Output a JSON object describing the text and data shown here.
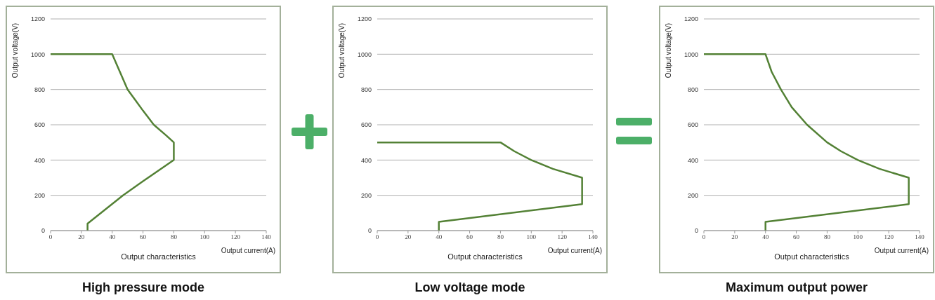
{
  "chart_data": [
    {
      "type": "line",
      "title": "High pressure mode",
      "xlabel": "Output current(A)",
      "ylabel": "Output voltage(V)",
      "annotations": [
        "Output characteristics"
      ],
      "xlim": [
        0,
        140
      ],
      "xticks": [
        0,
        20,
        40,
        60,
        80,
        100,
        120,
        140
      ],
      "ylim": [
        0,
        1200
      ],
      "yticks": [
        0,
        200,
        400,
        600,
        800,
        1000,
        1200
      ],
      "grid": "y",
      "marker": "none",
      "line_style": "solid",
      "series": [
        {
          "color": "#538135",
          "x": [
            0,
            40,
            45,
            50,
            55,
            60,
            67,
            75,
            80,
            80,
            60,
            47,
            24,
            24
          ],
          "values": [
            1000,
            1000,
            900,
            800,
            740,
            680,
            600,
            540,
            500,
            400,
            280,
            200,
            40,
            0
          ]
        }
      ]
    },
    {
      "type": "line",
      "title": "Low voltage mode",
      "xlabel": "Output current(A)",
      "ylabel": "Output voltage(V)",
      "annotations": [
        "Output characteristics"
      ],
      "xlim": [
        0,
        140
      ],
      "xticks": [
        0,
        20,
        40,
        60,
        80,
        100,
        120,
        140
      ],
      "ylim": [
        0,
        1200
      ],
      "yticks": [
        0,
        200,
        400,
        600,
        800,
        1000,
        1200
      ],
      "grid": "y",
      "marker": "none",
      "line_style": "solid",
      "series": [
        {
          "color": "#538135",
          "x": [
            0,
            80,
            89,
            100,
            114,
            133,
            133,
            40,
            40
          ],
          "values": [
            500,
            500,
            450,
            400,
            350,
            300,
            150,
            50,
            0
          ]
        }
      ]
    },
    {
      "type": "line",
      "title": "Maximum output power",
      "xlabel": "Output current(A)",
      "ylabel": "Output voltage(V)",
      "annotations": [
        "Output characteristics"
      ],
      "xlim": [
        0,
        140
      ],
      "xticks": [
        0,
        20,
        40,
        60,
        80,
        100,
        120,
        140
      ],
      "ylim": [
        0,
        1200
      ],
      "yticks": [
        0,
        200,
        400,
        600,
        800,
        1000,
        1200
      ],
      "grid": "y",
      "marker": "none",
      "line_style": "solid",
      "series": [
        {
          "color": "#538135",
          "x": [
            0,
            40,
            44,
            50,
            57,
            67,
            80,
            89,
            100,
            114,
            133,
            133,
            40,
            40
          ],
          "values": [
            1000,
            1000,
            900,
            800,
            700,
            600,
            500,
            450,
            400,
            350,
            300,
            150,
            50,
            0
          ]
        }
      ]
    }
  ]
}
